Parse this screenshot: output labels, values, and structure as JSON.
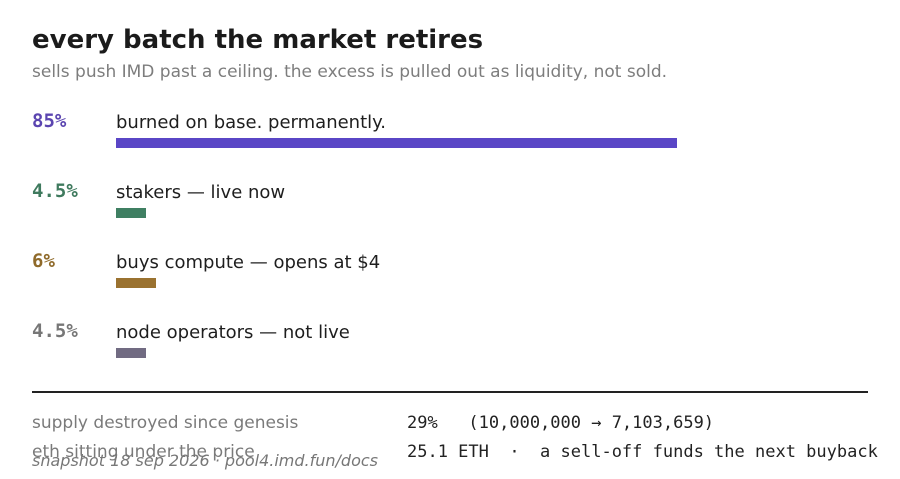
{
  "header": {
    "title": "every batch the market retires",
    "subtitle": "sells push IMD past a ceiling. the excess is pulled out as liquidity, not sold."
  },
  "items": [
    {
      "value": 85,
      "value_label": "85%",
      "text": "burned on base. permanently.",
      "color": "#5a46c6"
    },
    {
      "value": 4.5,
      "value_label": "4.5%",
      "text": "stakers — live now",
      "color": "#3f7f62"
    },
    {
      "value": 6,
      "value_label": "6%",
      "text": "buys compute — opens at $4",
      "color": "#9a7230"
    },
    {
      "value": 4.5,
      "value_label": "4.5%",
      "text": "node operators — not live",
      "color": "#716b82"
    }
  ],
  "facts": [
    {
      "key": "supply destroyed since genesis",
      "value": "29%   (10,000,000 → 7,103,659)"
    },
    {
      "key": "eth sitting under the price",
      "value": "25.1 ETH  ·  a sell-off funds the next buyback"
    }
  ],
  "footer": "snapshot 18 sep 2026 · pool4.imd.fun/docs"
}
